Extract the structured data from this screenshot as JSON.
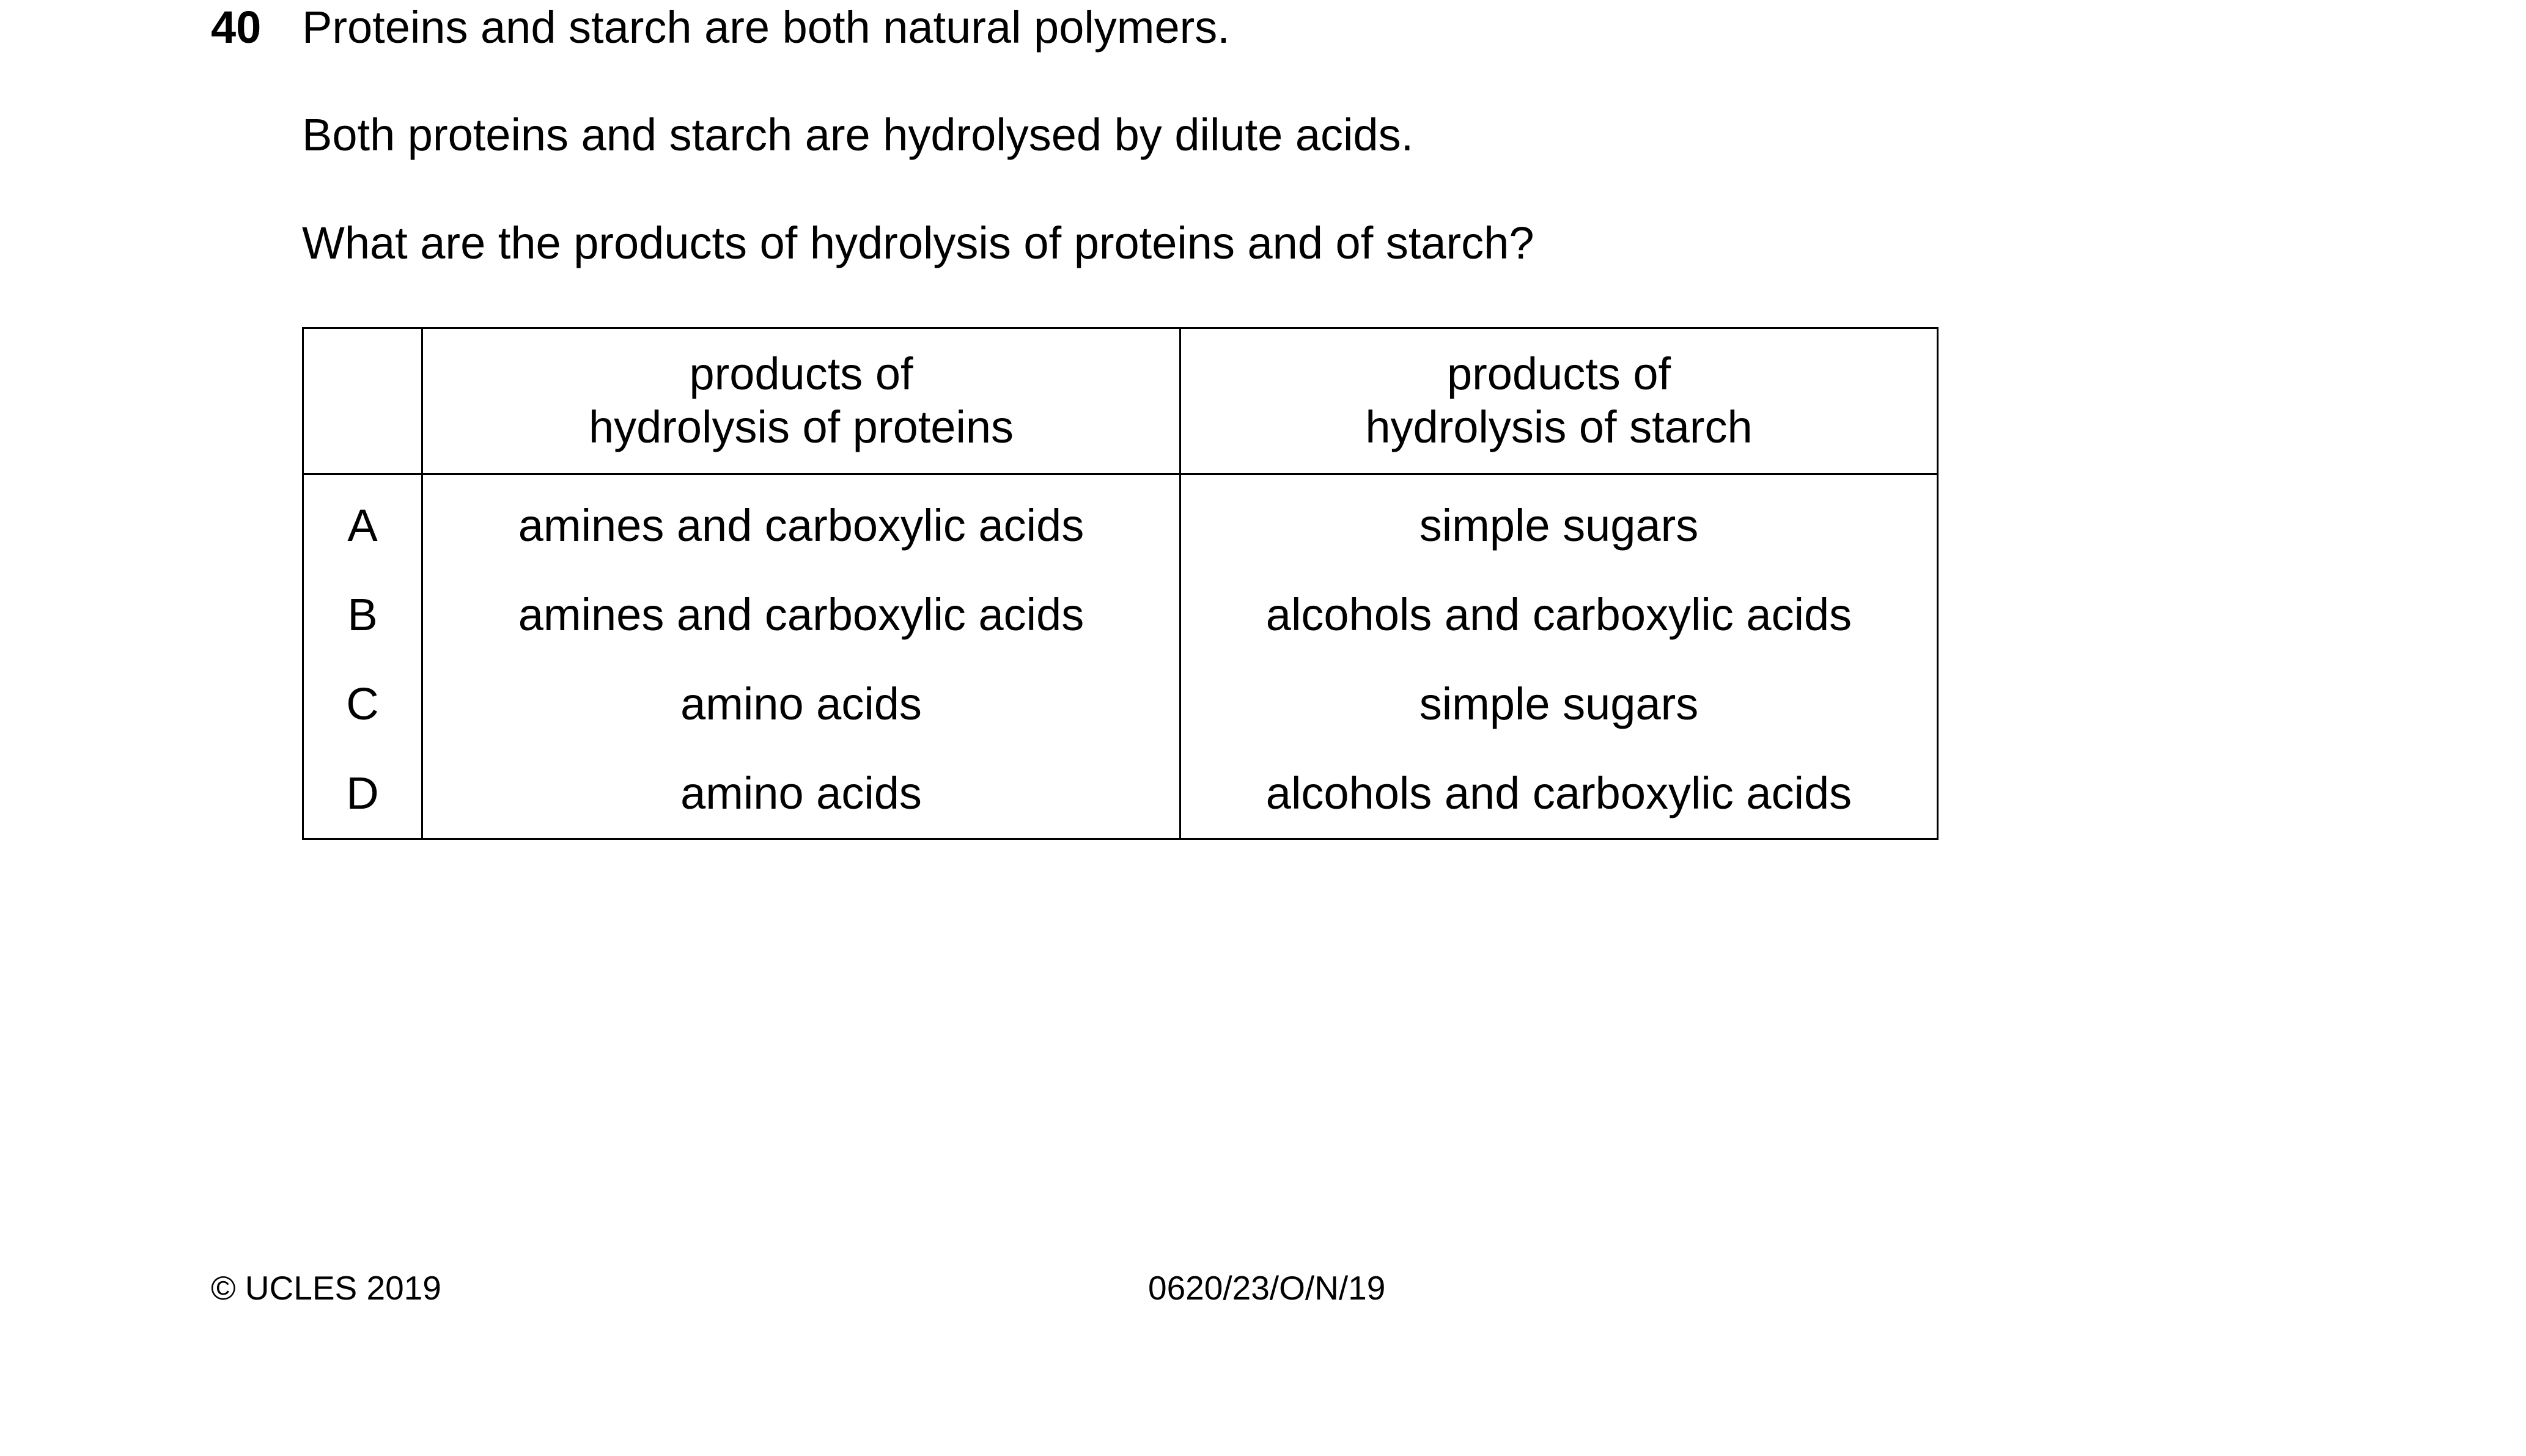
{
  "question": {
    "number": "40",
    "lines": [
      "Proteins and starch are both natural polymers.",
      "Both proteins and starch are hydrolysed by dilute acids.",
      "What are the products of hydrolysis of proteins and of starch?"
    ]
  },
  "table": {
    "headers": [
      "",
      "products of\nhydrolysis of proteins",
      "products of\nhydrolysis of starch"
    ],
    "header_lines": {
      "proteins": [
        "products of",
        "hydrolysis of proteins"
      ],
      "starch": [
        "products of",
        "hydrolysis of starch"
      ]
    },
    "rows": [
      {
        "letter": "A",
        "proteins": "amines and carboxylic acids",
        "starch": "simple sugars"
      },
      {
        "letter": "B",
        "proteins": "amines and carboxylic acids",
        "starch": "alcohols and carboxylic acids"
      },
      {
        "letter": "C",
        "proteins": "amino acids",
        "starch": "simple sugars"
      },
      {
        "letter": "D",
        "proteins": "amino acids",
        "starch": "alcohols and carboxylic acids"
      }
    ]
  },
  "footer": {
    "copyright": "© UCLES 2019",
    "code": "0620/23/O/N/19"
  }
}
